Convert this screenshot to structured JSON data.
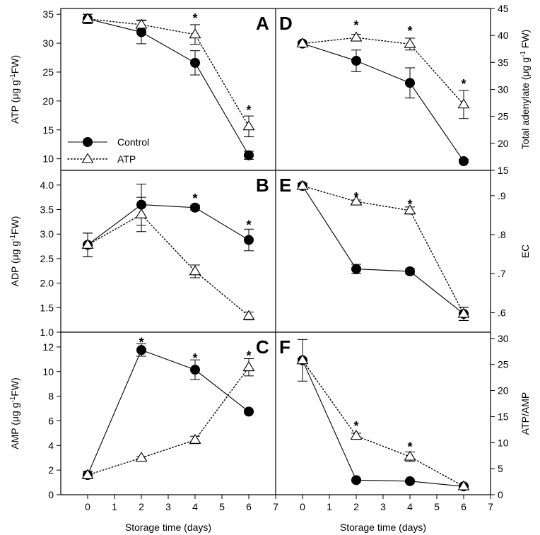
{
  "chart_data": [
    {
      "panel": "A",
      "type": "line",
      "ylabel": "ATP (μg g-1FW)",
      "ylabel_parts": [
        "ATP (μg g",
        "-1",
        "FW)"
      ],
      "ylim": [
        8,
        36
      ],
      "yticks": [
        "10",
        "15",
        "20",
        "25",
        "30",
        "35"
      ],
      "yticks_values": [
        10,
        15,
        20,
        25,
        30,
        35
      ],
      "y_axis": "left",
      "series": [
        {
          "name": "Control",
          "x": [
            0,
            2,
            4,
            6
          ],
          "y": [
            34.2,
            31.9,
            26.6,
            10.6
          ],
          "err": [
            0.8,
            2.0,
            2.1,
            0.7
          ]
        },
        {
          "name": "ATP",
          "x": [
            0,
            2,
            4,
            6
          ],
          "y": [
            34.2,
            33.2,
            31.5,
            15.6
          ],
          "err": [
            0.8,
            0.8,
            1.7,
            1.8
          ]
        }
      ],
      "stars": [
        {
          "x": 4,
          "y": 34.8
        },
        {
          "x": 6,
          "y": 18.9
        }
      ]
    },
    {
      "panel": "B",
      "type": "line",
      "ylabel": "ADP (μg g-1FW)",
      "ylabel_parts": [
        "ADP (μg g",
        "-1",
        "FW)"
      ],
      "ylim": [
        1.0,
        4.3
      ],
      "yticks": [
        "1.0",
        "1.5",
        "2.0",
        "2.5",
        "3.0",
        "3.5",
        "4.0"
      ],
      "yticks_values": [
        1.0,
        1.5,
        2.0,
        2.5,
        3.0,
        3.5,
        4.0
      ],
      "y_axis": "left",
      "series": [
        {
          "name": "Control",
          "x": [
            0,
            2,
            4,
            6
          ],
          "y": [
            2.78,
            3.6,
            3.54,
            2.88
          ],
          "err": [
            0.24,
            0.42,
            0.05,
            0.22
          ]
        },
        {
          "name": "ATP",
          "x": [
            0,
            2,
            4,
            6
          ],
          "y": [
            2.78,
            3.4,
            2.24,
            1.33
          ],
          "err": [
            0.24,
            0.35,
            0.13,
            0.08
          ]
        }
      ],
      "stars": [
        {
          "x": 4,
          "y": 3.78
        },
        {
          "x": 6,
          "y": 3.24
        }
      ]
    },
    {
      "panel": "C",
      "type": "line",
      "ylabel": "AMP (μg g-1FW)",
      "ylabel_parts": [
        "AMP (μg g",
        "-1",
        "FW)"
      ],
      "ylim": [
        0,
        13.2
      ],
      "yticks": [
        "0",
        "2",
        "4",
        "6",
        "8",
        "10",
        "12"
      ],
      "yticks_values": [
        0,
        2,
        4,
        6,
        8,
        10,
        12
      ],
      "y_axis": "left",
      "xlabel": "Storage time (days)",
      "xlim": [
        -1,
        7
      ],
      "xticks": [
        "0",
        "1",
        "2",
        "3",
        "4",
        "5",
        "6",
        "7"
      ],
      "xticks_values": [
        0,
        1,
        2,
        3,
        4,
        5,
        6,
        7
      ],
      "series": [
        {
          "name": "Control",
          "x": [
            0,
            2,
            4,
            6
          ],
          "y": [
            1.6,
            11.75,
            10.15,
            6.75
          ],
          "err": [
            0.3,
            0.5,
            0.8,
            0.1
          ]
        },
        {
          "name": "ATP",
          "x": [
            0,
            2,
            4,
            6
          ],
          "y": [
            1.6,
            3.0,
            4.45,
            10.35
          ],
          "err": [
            0.3,
            0.1,
            0.3,
            0.7
          ]
        }
      ],
      "stars": [
        {
          "x": 2,
          "y": 12.6
        },
        {
          "x": 4,
          "y": 11.3
        },
        {
          "x": 6,
          "y": 11.5
        }
      ]
    },
    {
      "panel": "D",
      "type": "line",
      "ylabel": "Total adenylate (μg g-1 FW)",
      "ylabel_parts": [
        "Total adenylate (μg g",
        "-1",
        " FW)"
      ],
      "ylim": [
        15,
        45
      ],
      "yticks": [
        "15",
        "20",
        "25",
        "30",
        "35",
        "40",
        "45"
      ],
      "yticks_values": [
        15,
        20,
        25,
        30,
        35,
        40,
        45
      ],
      "y_axis": "right",
      "series": [
        {
          "name": "Control",
          "x": [
            0,
            2,
            4,
            6
          ],
          "y": [
            38.5,
            35.3,
            31.2,
            16.7
          ],
          "err": [
            0.3,
            2.0,
            2.8,
            0.3
          ]
        },
        {
          "name": "ATP",
          "x": [
            0,
            2,
            4,
            6
          ],
          "y": [
            38.5,
            39.6,
            38.4,
            27.2
          ],
          "err": [
            0.3,
            0.6,
            1.1,
            2.6
          ]
        }
      ],
      "stars": [
        {
          "x": 2,
          "y": 42.4
        },
        {
          "x": 4,
          "y": 41.3
        },
        {
          "x": 6,
          "y": 31.5
        }
      ]
    },
    {
      "panel": "E",
      "type": "line",
      "ylabel": "EC",
      "ylim": [
        0.55,
        0.965
      ],
      "yticks": [
        ".6",
        ".7",
        ".8",
        ".9"
      ],
      "yticks_values": [
        0.6,
        0.7,
        0.8,
        0.9
      ],
      "y_axis": "right",
      "series": [
        {
          "name": "Control",
          "x": [
            0,
            2,
            4,
            6
          ],
          "y": [
            0.925,
            0.712,
            0.706,
            0.597
          ],
          "err": [
            0.007,
            0.012,
            0.007,
            0.017
          ]
        },
        {
          "name": "ATP",
          "x": [
            0,
            2,
            4,
            6
          ],
          "y": [
            0.925,
            0.885,
            0.862,
            0.597
          ],
          "err": [
            0.007,
            0.004,
            0.009,
            0.017
          ]
        }
      ],
      "stars": [
        {
          "x": 2,
          "y": 0.903
        },
        {
          "x": 4,
          "y": 0.884
        }
      ]
    },
    {
      "panel": "F",
      "type": "line",
      "ylabel": "ATP/AMP",
      "ylim": [
        0,
        31.2
      ],
      "yticks": [
        "0",
        "5",
        "10",
        "15",
        "20",
        "25",
        "30"
      ],
      "yticks_values": [
        0,
        5,
        10,
        15,
        20,
        25,
        30
      ],
      "y_axis": "right",
      "xlabel": "Storage time (days)",
      "xlim": [
        -1,
        7
      ],
      "xticks": [
        "0",
        "1",
        "2",
        "3",
        "4",
        "5",
        "6",
        "7"
      ],
      "xticks_values": [
        0,
        1,
        2,
        3,
        4,
        5,
        6,
        7
      ],
      "series": [
        {
          "name": "Control",
          "x": [
            0,
            2,
            4,
            6
          ],
          "y": [
            25.8,
            2.8,
            2.6,
            1.6
          ],
          "err": [
            4.0,
            0.2,
            0.2,
            0.2
          ]
        },
        {
          "name": "ATP",
          "x": [
            0,
            2,
            4,
            6
          ],
          "y": [
            25.8,
            11.3,
            7.3,
            1.6
          ],
          "err": [
            0.4,
            0.5,
            0.9,
            0.2
          ]
        }
      ],
      "stars": [
        {
          "x": 2,
          "y": 13.7
        },
        {
          "x": 4,
          "y": 9.7
        }
      ]
    }
  ],
  "legend": {
    "entries": [
      {
        "label": "Control",
        "marker": "filled-circle",
        "line": "solid"
      },
      {
        "label": "ATP",
        "marker": "open-triangle",
        "line": "dotted"
      }
    ],
    "panel": "A",
    "placement": "bottom-left"
  },
  "star_symbol": "*",
  "colors": {
    "ink": "#000000",
    "open_marker_fill": "#ffffff"
  }
}
